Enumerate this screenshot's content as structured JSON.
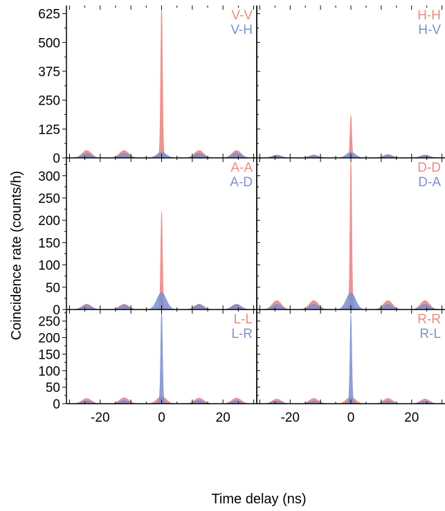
{
  "chart_data": {
    "type": "area",
    "layout": "3x2 grid of panels with shared x axis",
    "xlabel": "Time delay (ns)",
    "ylabel": "Coincidence rate (counts/h)",
    "xlim": [
      -31,
      31
    ],
    "xticks": [
      -20,
      0,
      20
    ],
    "x_tick_labels": [
      "-20",
      "0",
      "20"
    ],
    "peak_positions_ns": [
      -24.4,
      -12.2,
      0,
      12.2,
      24.4
    ],
    "colors": {
      "red": "#ea8a84",
      "blue": "#7d8fcf",
      "axis": "#000000"
    },
    "rows": [
      {
        "ylim": [
          0,
          660
        ],
        "yticks": [
          0,
          125,
          250,
          375,
          500,
          625
        ],
        "y_tick_labels": [
          "0",
          "125",
          "250",
          "375",
          "500",
          "625"
        ],
        "panels": [
          {
            "series": [
              {
                "name": "V-V",
                "color": "red",
                "peak_heights": [
                  32,
                  32,
                  640,
                  32,
                  32
                ]
              },
              {
                "name": "V-H",
                "color": "blue",
                "peak_heights": [
                  20,
                  20,
                  25,
                  20,
                  22
                ]
              }
            ]
          },
          {
            "series": [
              {
                "name": "H-H",
                "color": "red",
                "peak_heights": [
                  12,
                  12,
                  175,
                  12,
                  12
                ]
              },
              {
                "name": "H-V",
                "color": "blue",
                "peak_heights": [
                  12,
                  12,
                  24,
                  14,
                  12
                ]
              }
            ]
          }
        ]
      },
      {
        "ylim": [
          0,
          340
        ],
        "yticks": [
          0,
          50,
          100,
          150,
          200,
          250,
          300
        ],
        "y_tick_labels": [
          "0",
          "50",
          "100",
          "150",
          "200",
          "250",
          "300"
        ],
        "panels": [
          {
            "series": [
              {
                "name": "A-A",
                "color": "red",
                "peak_heights": [
                  12,
                  12,
                  208,
                  12,
                  12
                ]
              },
              {
                "name": "A-D",
                "color": "blue",
                "peak_heights": [
                  10,
                  10,
                  38,
                  11,
                  11
                ]
              }
            ]
          },
          {
            "series": [
              {
                "name": "D-D",
                "color": "red",
                "peak_heights": [
                  20,
                  20,
                  325,
                  20,
                  20
                ]
              },
              {
                "name": "D-A",
                "color": "blue",
                "peak_heights": [
                  12,
                  12,
                  38,
                  12,
                  12
                ]
              }
            ]
          }
        ]
      },
      {
        "ylim": [
          0,
          285
        ],
        "yticks": [
          0,
          50,
          100,
          150,
          200,
          250
        ],
        "y_tick_labels": [
          "0",
          "50",
          "100",
          "150",
          "200",
          "250"
        ],
        "panels": [
          {
            "series": [
              {
                "name": "L-L",
                "color": "red",
                "peak_heights": [
                  16,
                  18,
                  22,
                  17,
                  17
                ]
              },
              {
                "name": "L-R",
                "color": "blue",
                "peak_heights": [
                  9,
                  10,
                  268,
                  10,
                  10
                ]
              }
            ]
          },
          {
            "series": [
              {
                "name": "R-R",
                "color": "red",
                "peak_heights": [
                  14,
                  16,
                  20,
                  16,
                  14
                ]
              },
              {
                "name": "R-L",
                "color": "blue",
                "peak_heights": [
                  8,
                  8,
                  255,
                  8,
                  8
                ]
              }
            ]
          }
        ]
      }
    ]
  }
}
